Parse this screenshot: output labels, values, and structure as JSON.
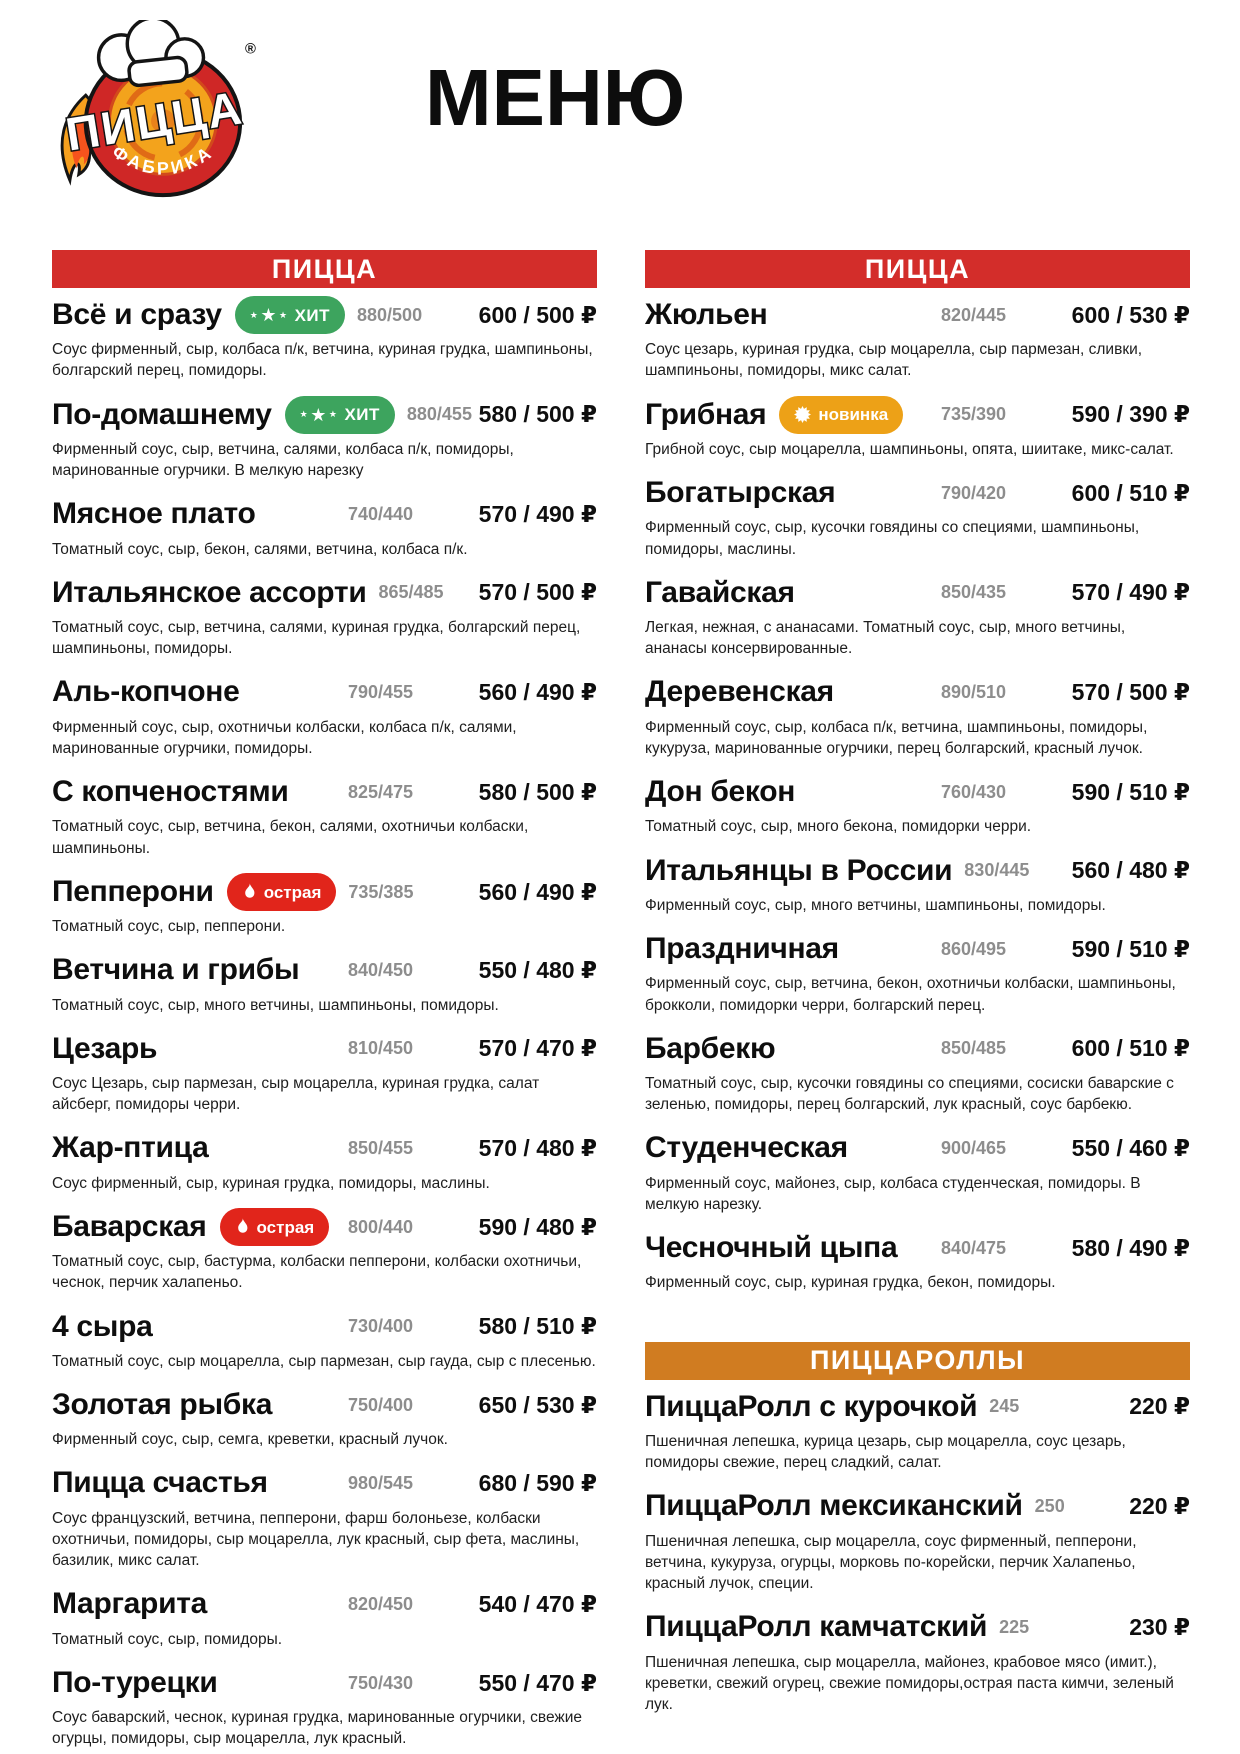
{
  "page_title": "МЕНЮ",
  "logo": {
    "word": "ПИЦЦА",
    "sub": "ФАБРИКА",
    "reg": "®"
  },
  "colors": {
    "header_red": "#d32d2a",
    "header_orange": "#d07c21",
    "badge_hit": "#3da45e",
    "badge_spicy": "#e1251b",
    "badge_new": "#eda117",
    "weight_gray": "#8d8d8d"
  },
  "currency": "₽",
  "columns": [
    {
      "sections": [
        {
          "title": "ПИЦЦА",
          "color_key": "header_red",
          "items": [
            {
              "name": "Всё и сразу",
              "badge": {
                "type": "hit",
                "label": "ХИТ"
              },
              "weight": "880/500",
              "price": "600 / 500 ₽",
              "desc": "Соус фирменный, сыр, колбаса п/к, ветчина, куриная грудка, шампиньоны, болгарский перец, помидоры."
            },
            {
              "name": "По-домашнему",
              "badge": {
                "type": "hit",
                "label": "ХИТ"
              },
              "weight": "880/455",
              "price": "580 / 500 ₽",
              "desc": "Фирменный соус, сыр, ветчина, салями, колбаса п/к, помидоры, маринованные огурчики. В мелкую нарезку"
            },
            {
              "name": "Мясное плато",
              "weight": "740/440",
              "price": "570 / 490 ₽",
              "desc": "Томатный соус, сыр, бекон, салями, ветчина, колбаса п/к."
            },
            {
              "name": "Итальянское ассорти",
              "weight": "865/485",
              "price": "570 / 500 ₽",
              "desc": "Томатный соус, сыр, ветчина, салями, куриная грудка, болгарский перец, шампиньоны, помидоры."
            },
            {
              "name": "Аль-копчоне",
              "weight": "790/455",
              "price": "560 / 490 ₽",
              "desc": "Фирменный соус, сыр, охотничьи колбаски, колбаса п/к, салями, маринованные огурчики, помидоры."
            },
            {
              "name": "С копченостями",
              "weight": "825/475",
              "price": "580 / 500 ₽",
              "desc": "Томатный соус, сыр, ветчина, бекон, салями, охотничьи колбаски, шампиньоны."
            },
            {
              "name": "Пепперони",
              "badge": {
                "type": "spicy",
                "label": "острая"
              },
              "weight": "735/385",
              "price": "560 / 490 ₽",
              "desc": "Томатный соус, сыр, пепперони."
            },
            {
              "name": "Ветчина и грибы",
              "weight": "840/450",
              "price": "550 / 480 ₽",
              "desc": "Томатный соус, сыр, много ветчины, шампиньоны, помидоры."
            },
            {
              "name": "Цезарь",
              "weight": "810/450",
              "price": "570 / 470 ₽",
              "desc": "Соус Цезарь, сыр пармезан, сыр моцарелла, куриная грудка, салат айсберг, помидоры черри."
            },
            {
              "name": "Жар-птица",
              "weight": "850/455",
              "price": "570 / 480 ₽",
              "desc": "Соус фирменный, сыр, куриная грудка, помидоры, маслины."
            },
            {
              "name": "Баварская",
              "badge": {
                "type": "spicy",
                "label": "острая"
              },
              "weight": "800/440",
              "price": "590 / 480 ₽",
              "desc": "Томатный соус, сыр, бастурма, колбаски пепперони, колбаски охотничьи, чеснок, перчик халапеньо."
            },
            {
              "name": "4 сыра",
              "weight": "730/400",
              "price": "580 / 510 ₽",
              "desc": "Томатный соус, сыр моцарелла, сыр пармезан, сыр гауда, сыр с плесенью."
            },
            {
              "name": "Золотая рыбка",
              "weight": "750/400",
              "price": "650 / 530 ₽",
              "desc": "Фирменный соус, сыр, семга, креветки, красный лучок."
            },
            {
              "name": "Пицца счастья",
              "weight": "980/545",
              "price": "680 / 590 ₽",
              "desc": "Соус французский, ветчина, пепперони, фарш болоньезе, колбаски охотничьи, помидоры, сыр моцарелла, лук красный, сыр фета, маслины, базилик, микс салат."
            },
            {
              "name": "Маргарита",
              "weight": "820/450",
              "price": "540 / 470 ₽",
              "desc": "Томатный соус, сыр, помидоры."
            },
            {
              "name": "По-турецки",
              "weight": "750/430",
              "price": "550 / 470 ₽",
              "desc": "Соус баварский, чеснок, куриная грудка, маринованные огурчики, свежие огурцы, помидоры, сыр моцарелла, лук красный."
            }
          ]
        }
      ]
    },
    {
      "sections": [
        {
          "title": "ПИЦЦА",
          "color_key": "header_red",
          "items": [
            {
              "name": "Жюльен",
              "weight": "820/445",
              "price": "600 / 530 ₽",
              "desc": "Соус цезарь, куриная грудка, сыр моцарелла, сыр пармезан, сливки, шампиньоны, помидоры, микс салат."
            },
            {
              "name": "Грибная",
              "badge": {
                "type": "new",
                "label": "новинка"
              },
              "weight": "735/390",
              "price": "590 / 390 ₽",
              "desc": "Грибной соус, сыр моцарелла, шампиньоны, опята, шиитаке, микс-салат."
            },
            {
              "name": "Богатырская",
              "weight": "790/420",
              "price": "600 / 510 ₽",
              "desc": "Фирменный соус, сыр, кусочки говядины со специями, шампиньоны, помидоры, маслины."
            },
            {
              "name": "Гавайская",
              "weight": "850/435",
              "price": "570 / 490 ₽",
              "desc": "Легкая, нежная, с ананасами. Томатный соус, сыр, много ветчины, ананасы консервированные."
            },
            {
              "name": "Деревенская",
              "weight": "890/510",
              "price": "570 / 500 ₽",
              "desc": "Фирменный соус, сыр, колбаса п/к, ветчина, шампиньоны, помидоры, кукуруза, маринованные огурчики, перец болгарский, красный лучок."
            },
            {
              "name": "Дон бекон",
              "weight": "760/430",
              "price": "590 / 510 ₽",
              "desc": "Томатный соус, сыр, много бекона, помидорки черри."
            },
            {
              "name": "Итальянцы в России",
              "weight": "830/445",
              "price": "560 / 480 ₽",
              "desc": "Фирменный соус, сыр, много ветчины, шампиньоны, помидоры."
            },
            {
              "name": "Праздничная",
              "weight": "860/495",
              "price": "590 / 510 ₽",
              "desc": "Фирменный соус, сыр, ветчина, бекон, охотничьи колбаски, шампиньоны, брокколи, помидорки черри, болгарский перец."
            },
            {
              "name": "Барбекю",
              "weight": "850/485",
              "price": "600 / 510 ₽",
              "desc": "Томатный соус, сыр, кусочки говядины со специями, сосиски баварские с зеленью, помидоры, перец болгарский, лук красный, соус барбекю."
            },
            {
              "name": "Студенческая",
              "weight": "900/465",
              "price": "550 / 460 ₽",
              "desc": "Фирменный соус, майонез, сыр, колбаса студенческая, помидоры. В мелкую нарезку."
            },
            {
              "name": "Чесночный цыпа",
              "weight": "840/475",
              "price": "580 / 490 ₽",
              "desc": "Фирменный соус, сыр, куриная грудка, бекон, помидоры."
            }
          ]
        },
        {
          "title": "ПИЦЦАРОЛЛЫ",
          "color_key": "header_orange",
          "items": [
            {
              "name": "ПиццаРолл с курочкой",
              "weight": "245",
              "price": "220 ₽",
              "desc": "Пшеничная лепешка, курица цезарь, сыр моцарелла, соус цезарь, помидоры свежие, перец сладкий, салат."
            },
            {
              "name": "ПиццаРолл мексиканский",
              "weight": "250",
              "price": "220 ₽",
              "desc": "Пшеничная лепешка, сыр моцарелла, соус фирменный, пепперони, ветчина, кукуруза, огурцы, морковь по-корейски, перчик Халапеньо, красный лучок, специи."
            },
            {
              "name": "ПиццаРолл камчатский",
              "weight": "225",
              "price": "230 ₽",
              "desc": "Пшеничная лепешка, сыр моцарелла, майонез, крабовое мясо (имит.), креветки, свежий огурец, свежие помидоры,острая паста кимчи, зеленый лук."
            }
          ]
        }
      ]
    }
  ]
}
